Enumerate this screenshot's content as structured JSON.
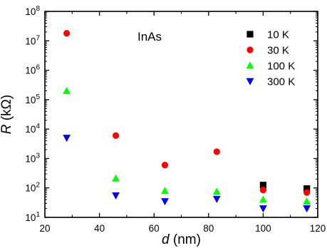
{
  "chart_data": {
    "type": "scatter",
    "title": "",
    "annotation": "InAs",
    "xlabel": {
      "var": "d",
      "unit": " (nm)"
    },
    "ylabel": {
      "var": "R",
      "unit": " (kΩ)"
    },
    "xlim": [
      20,
      120
    ],
    "xticks": [
      20,
      40,
      60,
      80,
      100,
      120
    ],
    "ylim_log10": [
      1,
      8
    ],
    "ylog": true,
    "grid": false,
    "legend_position": "top-right",
    "series": [
      {
        "name": "10 K",
        "marker": "square",
        "color": "#000000",
        "x": [
          100,
          116
        ],
        "y": [
          125,
          95
        ]
      },
      {
        "name": "30 K",
        "marker": "circle",
        "color": "#ff0000",
        "x": [
          28,
          46,
          64,
          83,
          100,
          116
        ],
        "y": [
          18000000,
          6000,
          600,
          1700,
          85,
          70
        ]
      },
      {
        "name": "100 K",
        "marker": "triangle-up",
        "color": "#00ff00",
        "x": [
          28,
          46,
          64,
          83,
          100,
          116
        ],
        "y": [
          200000,
          210,
          80,
          75,
          40,
          35
        ]
      },
      {
        "name": "300 K",
        "marker": "triangle-down",
        "color": "#0000ff",
        "x": [
          28,
          46,
          64,
          83,
          100,
          116
        ],
        "y": [
          5000,
          55,
          35,
          42,
          20,
          20
        ]
      }
    ]
  }
}
